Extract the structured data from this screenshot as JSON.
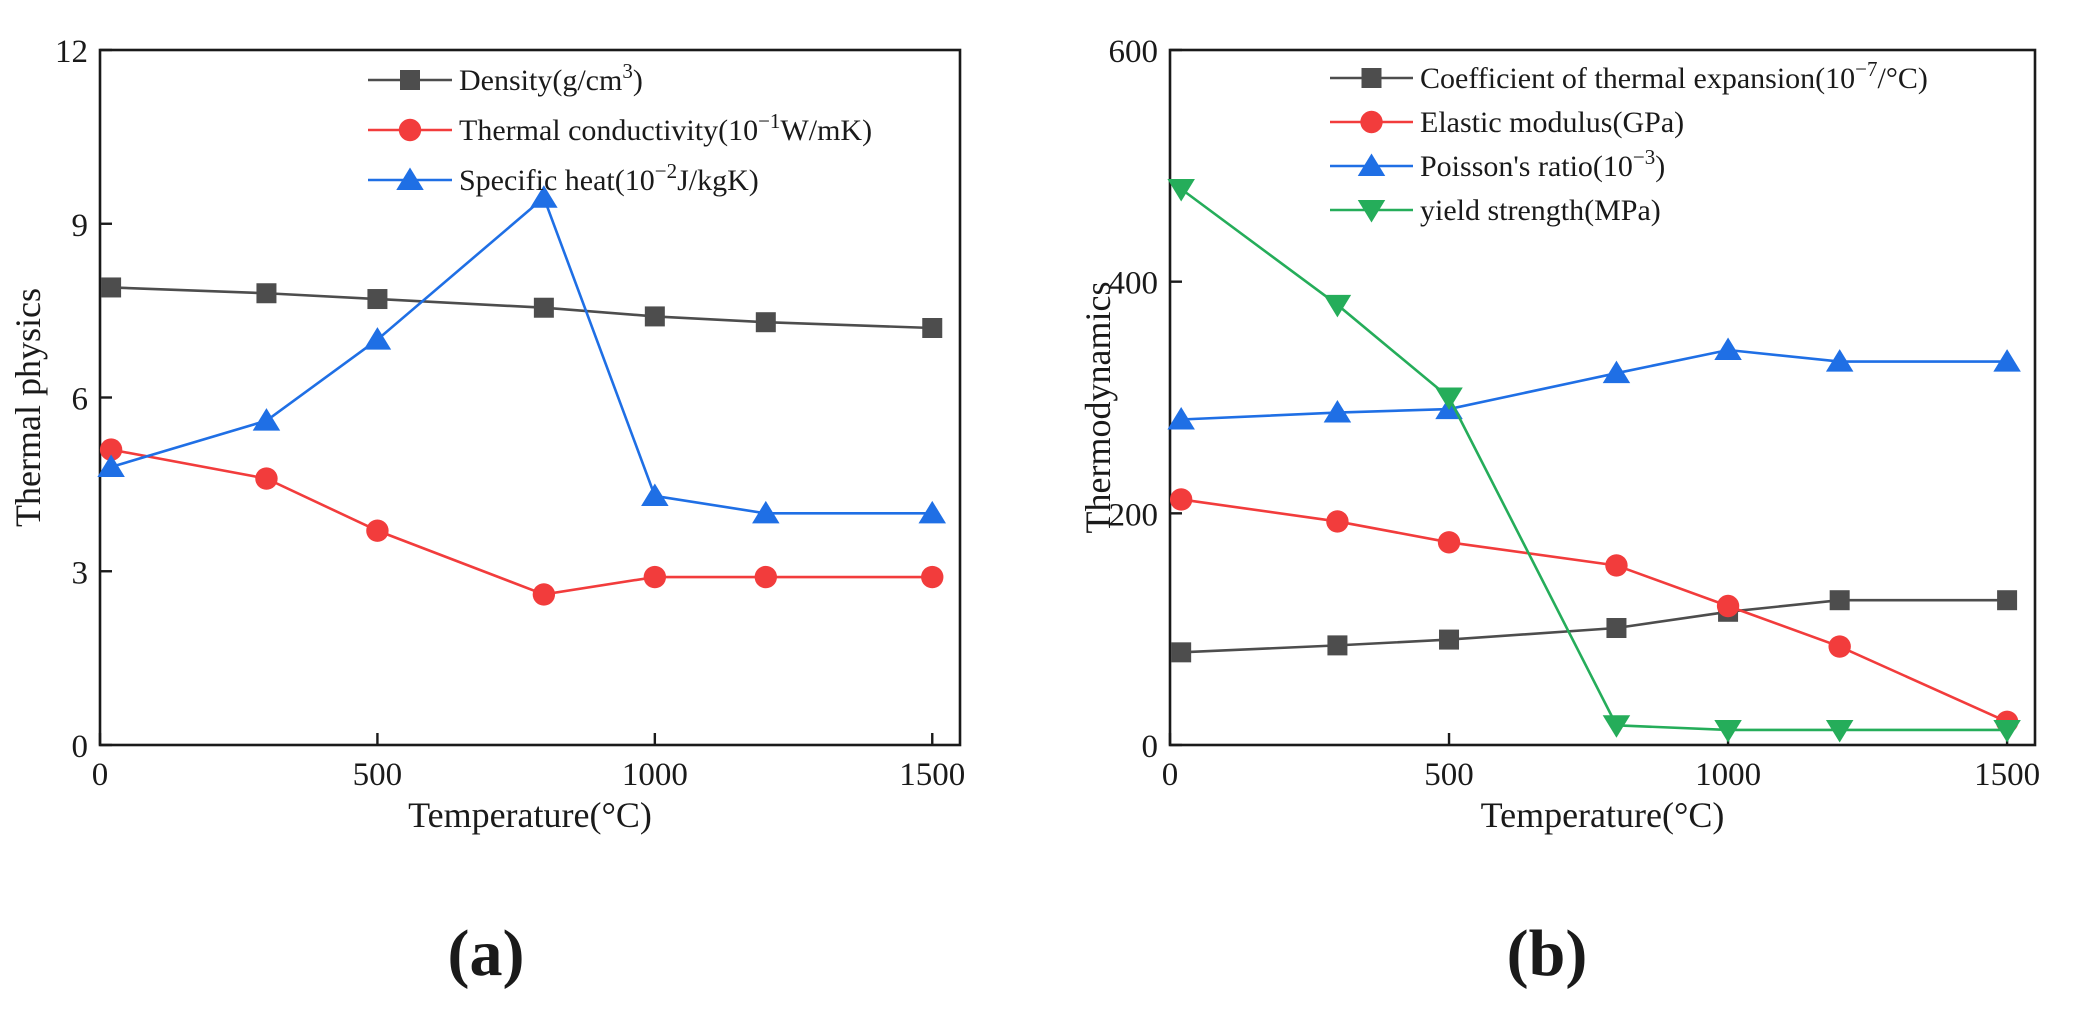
{
  "figure": {
    "label_a": "(a)",
    "label_b": "(b)"
  },
  "chart_data": [
    {
      "type": "line",
      "panel": "a",
      "xlabel": "Temperature(°C)",
      "ylabel": "Thermal physics",
      "xlim": [
        0,
        1550
      ],
      "ylim": [
        0,
        12
      ],
      "xticks": [
        0,
        500,
        1000,
        1500
      ],
      "yticks": [
        0,
        3,
        6,
        9,
        12
      ],
      "x": [
        20,
        300,
        500,
        800,
        1000,
        1200,
        1500
      ],
      "legend_position": "top-right",
      "grid": false,
      "series": [
        {
          "name": "Density(g/cm³)",
          "label_parts": [
            "Density(g/cm",
            "3",
            ")"
          ],
          "marker": "square",
          "color": "#4d4d4d",
          "values": [
            7.9,
            7.8,
            7.7,
            7.55,
            7.4,
            7.3,
            7.2
          ]
        },
        {
          "name": "Thermal conductivity(10⁻¹W/mK)",
          "label_parts": [
            "Thermal conductivity(10",
            "−1",
            "W/mK)"
          ],
          "marker": "circle",
          "color": "#f23c3c",
          "values": [
            5.1,
            4.6,
            3.7,
            2.6,
            2.9,
            2.9,
            2.9
          ]
        },
        {
          "name": "Specific heat(10⁻²J/kgK)",
          "label_parts": [
            "Specific heat(10",
            "−2",
            "J/kgK)"
          ],
          "marker": "triangle-up",
          "color": "#1f6fe5",
          "values": [
            4.8,
            5.6,
            7.0,
            9.45,
            4.3,
            4.0,
            4.0
          ]
        }
      ]
    },
    {
      "type": "line",
      "panel": "b",
      "xlabel": "Temperature(°C)",
      "ylabel": "Thermodynamics",
      "xlim": [
        0,
        1550
      ],
      "ylim": [
        0,
        600
      ],
      "xticks": [
        0,
        500,
        1000,
        1500
      ],
      "yticks": [
        0,
        200,
        400,
        600
      ],
      "x": [
        20,
        300,
        500,
        800,
        1000,
        1200,
        1500
      ],
      "legend_position": "top-right",
      "grid": false,
      "series": [
        {
          "name": "Coefficient of thermal expansion(10⁻⁷/°C)",
          "label_parts": [
            "Coefficient of thermal expansion(10",
            "−7",
            "/°C)"
          ],
          "marker": "square",
          "color": "#4d4d4d",
          "values": [
            80,
            86,
            91,
            101,
            115,
            125,
            125
          ]
        },
        {
          "name": "Elastic modulus(GPa)",
          "label_parts": [
            "Elastic modulus(GPa)",
            "",
            ""
          ],
          "marker": "circle",
          "color": "#f23c3c",
          "values": [
            212,
            193,
            175,
            155,
            120,
            85,
            20
          ]
        },
        {
          "name": "Poisson's ratio(10⁻³)",
          "label_parts": [
            "Poisson's ratio(10",
            "−3",
            ")"
          ],
          "marker": "triangle-up",
          "color": "#1f6fe5",
          "values": [
            281,
            287,
            290,
            321,
            341,
            331,
            331
          ]
        },
        {
          "name": "yield strength(MPa)",
          "label_parts": [
            "yield strength(MPa)",
            "",
            ""
          ],
          "marker": "triangle-down",
          "color": "#25ad5a",
          "values": [
            480,
            380,
            300,
            17,
            13,
            13,
            13
          ]
        }
      ]
    }
  ]
}
